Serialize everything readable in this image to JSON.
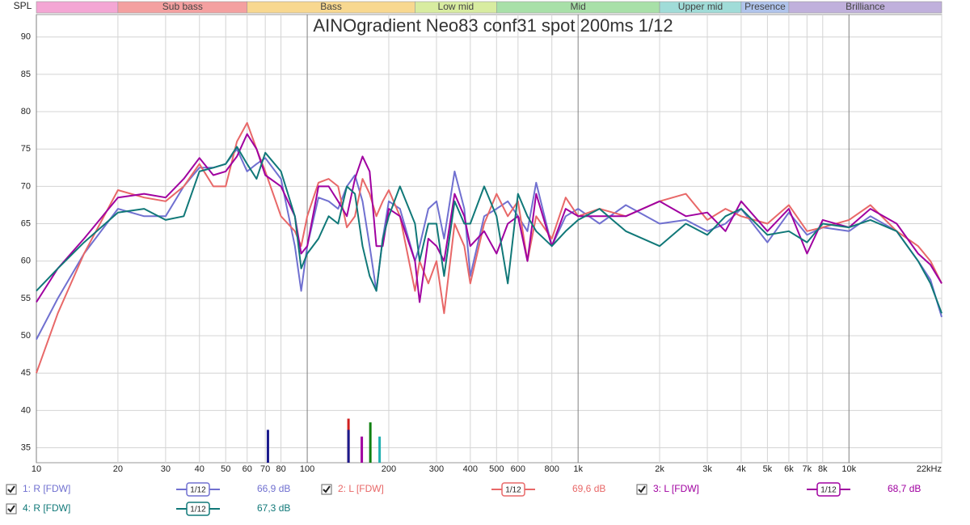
{
  "chart_data": {
    "type": "line",
    "title": "AINOgradient Neo83 conf31 spot 200ms 1/12",
    "y_label": "SPL",
    "log_x": true,
    "grid": true,
    "xlim": [
      10,
      22000
    ],
    "ylim": [
      33,
      93
    ],
    "xticks": [
      10,
      20,
      30,
      40,
      50,
      60,
      70,
      80,
      100,
      200,
      300,
      400,
      500,
      600,
      800,
      {
        "value": 1000,
        "label": "1k"
      },
      {
        "value": 2000,
        "label": "2k"
      },
      {
        "value": 3000,
        "label": "3k"
      },
      {
        "value": 4000,
        "label": "4k"
      },
      {
        "value": 5000,
        "label": "5k"
      },
      {
        "value": 6000,
        "label": "6k"
      },
      {
        "value": 7000,
        "label": "7k"
      },
      {
        "value": 8000,
        "label": "8k"
      },
      {
        "value": 10000,
        "label": "10k"
      },
      {
        "value": 22000,
        "label": "22kHz"
      }
    ],
    "yticks": [
      35,
      40,
      45,
      50,
      55,
      60,
      65,
      70,
      75,
      80,
      85,
      90
    ],
    "bands": [
      {
        "label": null,
        "from": 10,
        "to": 20,
        "color": "#f4a6d4"
      },
      {
        "label": "Sub bass",
        "from": 20,
        "to": 60,
        "color": "#f4a0a0"
      },
      {
        "label": "Bass",
        "from": 60,
        "to": 250,
        "color": "#f8d890"
      },
      {
        "label": "Low mid",
        "from": 250,
        "to": 500,
        "color": "#d8eca0"
      },
      {
        "label": "Mid",
        "from": 500,
        "to": 2000,
        "color": "#a8e0a8"
      },
      {
        "label": "Upper mid",
        "from": 2000,
        "to": 4000,
        "color": "#a0dcd8"
      },
      {
        "label": "Presence",
        "from": 4000,
        "to": 6000,
        "color": "#b0c4ec"
      },
      {
        "label": "Brilliance",
        "from": 6000,
        "to": 22000,
        "color": "#c0b0dc"
      }
    ],
    "x": [
      10,
      12,
      15,
      20,
      25,
      30,
      35,
      40,
      45,
      50,
      55,
      60,
      65,
      70,
      80,
      90,
      95,
      100,
      110,
      120,
      130,
      140,
      150,
      160,
      170,
      180,
      190,
      200,
      220,
      250,
      260,
      280,
      300,
      320,
      350,
      380,
      400,
      450,
      500,
      550,
      600,
      650,
      700,
      800,
      900,
      1000,
      1200,
      1500,
      2000,
      2500,
      3000,
      3500,
      4000,
      5000,
      6000,
      7000,
      8000,
      10000,
      12000,
      15000,
      18000,
      20000,
      22000
    ],
    "series": [
      {
        "name": "1: R [FDW]",
        "color": "#7070d0",
        "smoothing": "1/12",
        "level": "66,9 dB",
        "values": [
          49.5,
          55,
          61,
          67,
          66,
          66,
          70,
          72.5,
          72.5,
          73,
          75,
          72,
          73,
          73.8,
          71,
          62,
          56,
          62,
          68.5,
          68,
          67,
          70,
          71.5,
          68,
          62,
          56,
          63,
          68,
          67,
          60,
          62,
          67,
          68,
          63,
          72,
          67,
          58,
          66,
          67,
          68,
          66,
          64,
          70.5,
          62,
          66,
          67,
          65,
          67.5,
          65,
          65.5,
          64,
          65,
          67,
          62.5,
          66.5,
          63.5,
          64.5,
          64,
          66,
          64,
          60,
          57.5,
          52.5
        ]
      },
      {
        "name": "2: L [FDW]",
        "color": "#e86868",
        "smoothing": "1/12",
        "level": "69,6 dB",
        "values": [
          45,
          53,
          61,
          69.5,
          68.5,
          68,
          70,
          73,
          70,
          70,
          76,
          78.5,
          75,
          72,
          66,
          64,
          62,
          66,
          70.5,
          71,
          70,
          64.5,
          66,
          71,
          69,
          66,
          68,
          69.5,
          66,
          56,
          60,
          57,
          60,
          53,
          65,
          62,
          57,
          65,
          69,
          66,
          68,
          60,
          66,
          63,
          68.5,
          66,
          67,
          66,
          68,
          69,
          65.5,
          67,
          66,
          65,
          67.5,
          64,
          64.5,
          65.5,
          67.5,
          64,
          62,
          60,
          57
        ]
      },
      {
        "name": "3: L [FDW]",
        "color": "#a000a0",
        "smoothing": "1/12",
        "level": "68,7 dB",
        "values": [
          54.5,
          59,
          63,
          68.5,
          69,
          68.5,
          71,
          73.8,
          71.5,
          72,
          74,
          77,
          75,
          71.5,
          70,
          66,
          61,
          62,
          70,
          70,
          68,
          66,
          71,
          74,
          72,
          62,
          62,
          67,
          66,
          60,
          54.5,
          63,
          62,
          60,
          69,
          66,
          62,
          64,
          61,
          65,
          66,
          60,
          69,
          62,
          67,
          66,
          66,
          66,
          68,
          66,
          66.5,
          64,
          68,
          64,
          67,
          61,
          65.5,
          64.5,
          67,
          65,
          61,
          59.5,
          57
        ]
      },
      {
        "name": "4: R [FDW]",
        "color": "#107878",
        "smoothing": "1/12",
        "level": "67,3 dB",
        "values": [
          56,
          59,
          62.5,
          66.5,
          67,
          65.5,
          66,
          72,
          72.5,
          73,
          75.3,
          73,
          71,
          74.5,
          72,
          66,
          59,
          61,
          63,
          66,
          65,
          70,
          69,
          62,
          58,
          56,
          63,
          66,
          70,
          65,
          60,
          65,
          65,
          58,
          68,
          65,
          65,
          70,
          66,
          57,
          69,
          66,
          64,
          62,
          64,
          65.5,
          67,
          64,
          62,
          65,
          63.5,
          66,
          67,
          63.5,
          64,
          62.5,
          65,
          64.5,
          65.5,
          64,
          60,
          57,
          53
        ]
      }
    ],
    "markers": [
      {
        "x": 71.6,
        "y": 37.4,
        "color": "#1a1a8c"
      },
      {
        "x": 142,
        "y": 38.9,
        "color": "#d02020"
      },
      {
        "x": 142,
        "y": 37.4,
        "color": "#1a1a8c"
      },
      {
        "x": 159,
        "y": 36.5,
        "color": "#a000a0"
      },
      {
        "x": 171,
        "y": 38.4,
        "color": "#108010"
      },
      {
        "x": 185,
        "y": 36.5,
        "color": "#20b0b0"
      }
    ]
  }
}
